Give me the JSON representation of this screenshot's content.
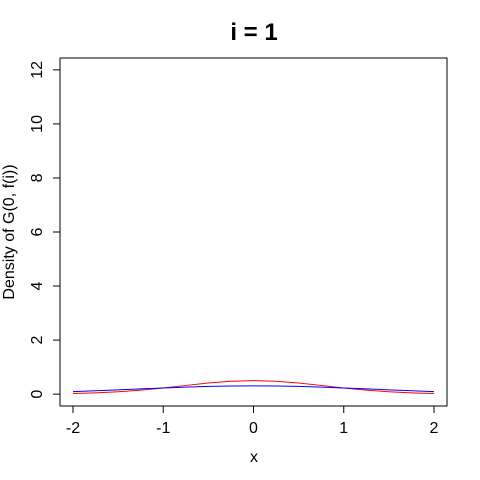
{
  "chart_data": {
    "type": "line",
    "title": "i = 1",
    "x_label": "x",
    "y_label": "Density of G(0, f(i))",
    "x": [
      -2,
      -1.75,
      -1.5,
      -1.25,
      -1,
      -0.75,
      -0.5,
      -0.25,
      0,
      0.25,
      0.5,
      0.75,
      1,
      1.25,
      1.5,
      1.75,
      2
    ],
    "series": [
      {
        "color": "#ff0000",
        "values": [
          0.022,
          0.046,
          0.086,
          0.147,
          0.228,
          0.321,
          0.41,
          0.475,
          0.499,
          0.475,
          0.41,
          0.321,
          0.228,
          0.147,
          0.086,
          0.046,
          0.022
        ]
      },
      {
        "color": "#0000ff",
        "values": [
          0.094,
          0.124,
          0.158,
          0.193,
          0.228,
          0.26,
          0.285,
          0.301,
          0.307,
          0.301,
          0.285,
          0.26,
          0.228,
          0.193,
          0.158,
          0.124,
          0.094
        ]
      }
    ],
    "xlim": [
      -2.144,
      2.144
    ],
    "ylim": [
      -0.44,
      12.44
    ],
    "xticks": [
      -2,
      -1,
      0,
      1,
      2
    ],
    "yticks": [
      0,
      2,
      4,
      6,
      8,
      10,
      12
    ]
  }
}
